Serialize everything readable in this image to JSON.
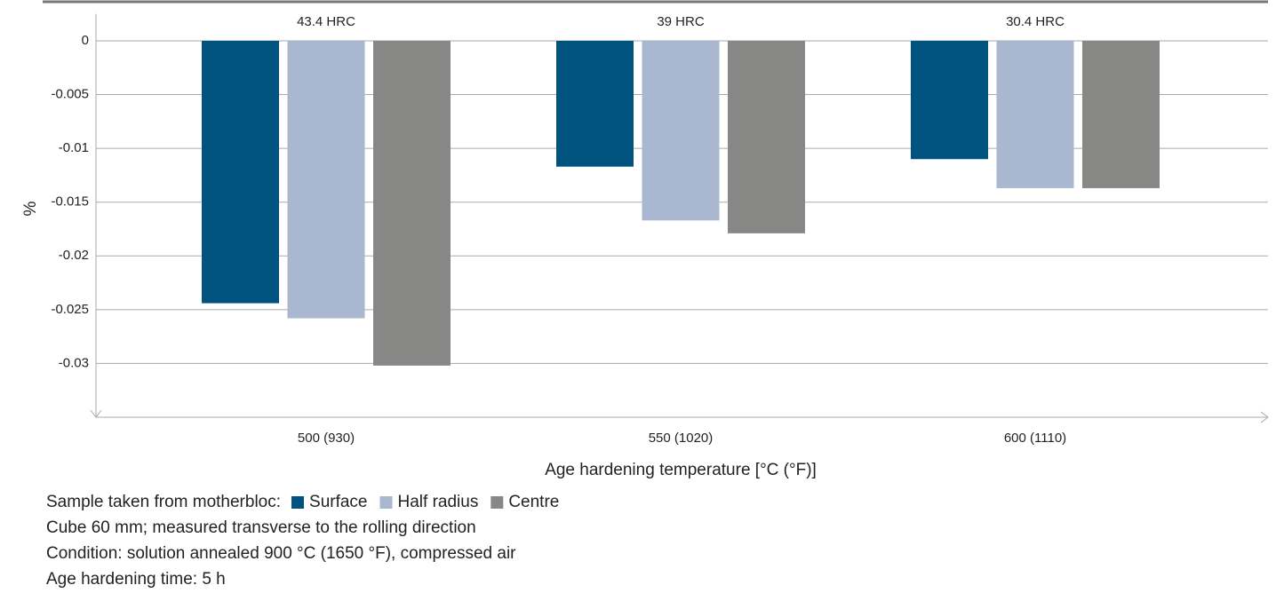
{
  "chart_data": {
    "type": "bar",
    "categories": [
      "500 (930)",
      "550 (1020)",
      "600 (1110)"
    ],
    "annotations": [
      "43.4 HRC",
      "39 HRC",
      "30.4 HRC"
    ],
    "series": [
      {
        "name": "Surface",
        "color": "#00527f",
        "values": [
          -0.0244,
          -0.0117,
          -0.011
        ]
      },
      {
        "name": "Half radius",
        "color": "#a9b7d1",
        "values": [
          -0.0258,
          -0.0167,
          -0.0137
        ]
      },
      {
        "name": "Centre",
        "color": "#878785",
        "values": [
          -0.0302,
          -0.0179,
          -0.0137
        ]
      }
    ],
    "ylabel": "%",
    "xlabel": "Age hardening temperature [°C (°F)]",
    "ylim": [
      -0.035,
      0.0025
    ],
    "yticks": [
      0,
      -0.005,
      -0.01,
      -0.015,
      -0.02,
      -0.025,
      -0.03
    ],
    "grid": true,
    "legend_title": "Sample taken from motherbloc:",
    "notes": [
      "Cube 60 mm; measured transverse to the rolling direction",
      "Condition: solution annealed 900 °C (1650 °F), compressed air",
      "Age hardening time: 5 h"
    ]
  }
}
